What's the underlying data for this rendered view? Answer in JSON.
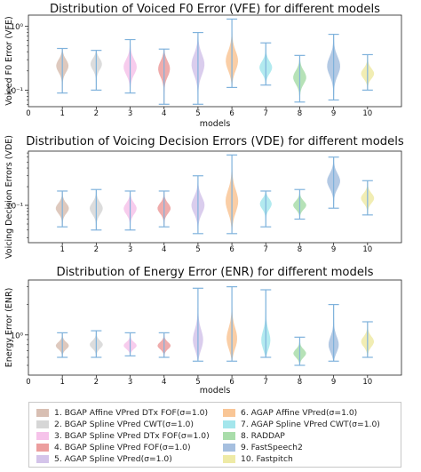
{
  "chart_data": [
    {
      "type": "violin",
      "title": "Distribution of Voiced F0 Error (VFE) for different models",
      "xlabel": "models",
      "ylabel": "Voiced F0 Error (VFE)",
      "yscale": "log",
      "ylim": [
        0.055,
        1.5
      ],
      "ytick_labels": [
        "10⁻¹",
        "10⁰"
      ],
      "ytick_values": [
        0.1,
        1
      ],
      "xlim": [
        0,
        11
      ],
      "xticks": [
        "0",
        "1",
        "2",
        "3",
        "4",
        "5",
        "6",
        "7",
        "8",
        "9",
        "10"
      ],
      "series": [
        {
          "model": 1,
          "median": 0.25,
          "min": 0.09,
          "max": 0.45
        },
        {
          "model": 2,
          "median": 0.27,
          "min": 0.1,
          "max": 0.42
        },
        {
          "model": 3,
          "median": 0.23,
          "min": 0.09,
          "max": 0.62
        },
        {
          "model": 4,
          "median": 0.23,
          "min": 0.06,
          "max": 0.44
        },
        {
          "model": 5,
          "median": 0.26,
          "min": 0.06,
          "max": 0.8
        },
        {
          "model": 6,
          "median": 0.27,
          "min": 0.11,
          "max": 1.3
        },
        {
          "model": 7,
          "median": 0.22,
          "min": 0.12,
          "max": 0.55
        },
        {
          "model": 8,
          "median": 0.16,
          "min": 0.065,
          "max": 0.35
        },
        {
          "model": 9,
          "median": 0.24,
          "min": 0.07,
          "max": 0.75
        },
        {
          "model": 10,
          "median": 0.18,
          "min": 0.1,
          "max": 0.36
        }
      ]
    },
    {
      "type": "violin",
      "title": "Distribution of Voicing Decision Errors (VDE) for different models",
      "xlabel": "",
      "ylabel": "Voicing Decision Errors (VDE)",
      "yscale": "log",
      "ylim": [
        0.025,
        0.75
      ],
      "ytick_labels": [
        "10⁻¹"
      ],
      "ytick_values": [
        0.1
      ],
      "xlim": [
        0,
        11
      ],
      "xticks": [
        "1",
        "2",
        "3",
        "4",
        "5",
        "6",
        "7",
        "8",
        "9",
        "10"
      ],
      "series": [
        {
          "model": 1,
          "median": 0.09,
          "min": 0.045,
          "max": 0.17
        },
        {
          "model": 2,
          "median": 0.09,
          "min": 0.04,
          "max": 0.18
        },
        {
          "model": 3,
          "median": 0.09,
          "min": 0.04,
          "max": 0.17
        },
        {
          "model": 4,
          "median": 0.09,
          "min": 0.045,
          "max": 0.17
        },
        {
          "model": 5,
          "median": 0.1,
          "min": 0.035,
          "max": 0.3
        },
        {
          "model": 6,
          "median": 0.11,
          "min": 0.035,
          "max": 0.65
        },
        {
          "model": 7,
          "median": 0.11,
          "min": 0.045,
          "max": 0.17
        },
        {
          "model": 8,
          "median": 0.1,
          "min": 0.06,
          "max": 0.18
        },
        {
          "model": 9,
          "median": 0.25,
          "min": 0.09,
          "max": 0.6
        },
        {
          "model": 10,
          "median": 0.13,
          "min": 0.07,
          "max": 0.25
        }
      ]
    },
    {
      "type": "violin",
      "title": "Distribution of Energy Error (ENR) for different models",
      "xlabel": "models",
      "ylabel": "Energy Error (ENR)",
      "yscale": "log",
      "ylim": [
        0.4,
        3.5
      ],
      "ytick_labels": [
        "10⁰"
      ],
      "ytick_values": [
        1
      ],
      "xlim": [
        0,
        11
      ],
      "xticks": [
        "0",
        "1",
        "2",
        "3",
        "4",
        "5",
        "6",
        "7",
        "8",
        "9",
        "10"
      ],
      "series": [
        {
          "model": 1,
          "median": 0.78,
          "min": 0.6,
          "max": 1.05
        },
        {
          "model": 2,
          "median": 0.8,
          "min": 0.6,
          "max": 1.1
        },
        {
          "model": 3,
          "median": 0.78,
          "min": 0.62,
          "max": 1.05
        },
        {
          "model": 4,
          "median": 0.78,
          "min": 0.6,
          "max": 1.05
        },
        {
          "model": 5,
          "median": 0.82,
          "min": 0.55,
          "max": 2.9
        },
        {
          "model": 6,
          "median": 0.85,
          "min": 0.55,
          "max": 3.0
        },
        {
          "model": 7,
          "median": 0.8,
          "min": 0.6,
          "max": 2.8
        },
        {
          "model": 8,
          "median": 0.65,
          "min": 0.5,
          "max": 0.95
        },
        {
          "model": 9,
          "median": 0.75,
          "min": 0.55,
          "max": 2.0
        },
        {
          "model": 10,
          "median": 0.85,
          "min": 0.6,
          "max": 1.35
        }
      ]
    }
  ],
  "colors": [
    "#d8bfb3",
    "#d6d6d6",
    "#f6c3ea",
    "#ec9e9e",
    "#d4c4ea",
    "#f9c696",
    "#a4e6ec",
    "#a9ddaa",
    "#a6bfdf",
    "#eeeaa6"
  ],
  "whisker_color": "#7fb2dc",
  "legend": [
    "1. BGAP Affine VPred DTx FOF(σ=1.0)",
    "2. BGAP Spline VPred CWT(σ=1.0)",
    "3. BGAP Spline VPred DTx FOF(σ=1.0)",
    "4. BGAP Spline VPred FOF(σ=1.0)",
    "5. AGAP Spline VPred(σ=1.0)",
    "6. AGAP Affine VPred(σ=1.0)",
    "7. AGAP Spline VPred CWT(σ=1.0)",
    "8. RADDAP",
    "9. FastSpeech2",
    "10. Fastpitch"
  ]
}
